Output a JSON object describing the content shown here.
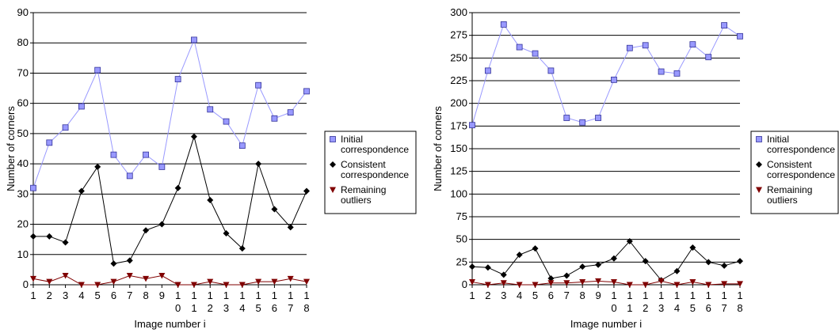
{
  "chart_data": [
    {
      "type": "line",
      "xlabel": "Image number i",
      "ylabel": "Number of corners",
      "x": [
        "1",
        "2",
        "3",
        "4",
        "5",
        "6",
        "7",
        "8",
        "9",
        "10",
        "11",
        "12",
        "13",
        "14",
        "15",
        "16",
        "17",
        "18"
      ],
      "ylim": [
        0,
        90
      ],
      "yticks": [
        0,
        10,
        20,
        30,
        40,
        50,
        60,
        70,
        80,
        90
      ],
      "grid": true,
      "legend_position": "right",
      "series": [
        {
          "name": "Initial correspondence",
          "color": "#9999ff",
          "marker": "square",
          "values": [
            32,
            47,
            52,
            59,
            71,
            43,
            36,
            43,
            39,
            68,
            81,
            58,
            54,
            46,
            66,
            55,
            57,
            64
          ]
        },
        {
          "name": "Consistent correspondence",
          "color": "#000000",
          "marker": "diamond",
          "values": [
            16,
            16,
            14,
            31,
            39,
            7,
            8,
            18,
            20,
            32,
            49,
            28,
            17,
            12,
            40,
            25,
            19,
            31
          ]
        },
        {
          "name": "Remaining outliers",
          "color": "#800000",
          "marker": "triangle-down",
          "values": [
            2,
            1,
            3,
            0,
            0,
            1,
            3,
            2,
            3,
            0,
            0,
            1,
            0,
            0,
            1,
            1,
            2,
            1
          ]
        }
      ]
    },
    {
      "type": "line",
      "xlabel": "Image number i",
      "ylabel": "Number of corners",
      "x": [
        "1",
        "2",
        "3",
        "4",
        "5",
        "6",
        "7",
        "8",
        "9",
        "10",
        "11",
        "12",
        "13",
        "14",
        "15",
        "16",
        "17",
        "18"
      ],
      "ylim": [
        0,
        300
      ],
      "yticks": [
        0,
        25,
        50,
        75,
        100,
        125,
        150,
        175,
        200,
        225,
        250,
        275,
        300
      ],
      "grid": true,
      "legend_position": "right",
      "series": [
        {
          "name": "Initial correspondence",
          "color": "#9999ff",
          "marker": "square",
          "values": [
            176,
            236,
            287,
            262,
            255,
            236,
            184,
            179,
            184,
            226,
            261,
            264,
            235,
            233,
            265,
            251,
            286,
            274
          ]
        },
        {
          "name": "Consistent correspondence",
          "color": "#000000",
          "marker": "diamond",
          "values": [
            20,
            19,
            11,
            33,
            40,
            7,
            10,
            20,
            22,
            29,
            48,
            26,
            5,
            15,
            41,
            25,
            21,
            26
          ]
        },
        {
          "name": "Remaining outliers",
          "color": "#800000",
          "marker": "triangle-down",
          "values": [
            3,
            0,
            2,
            0,
            0,
            2,
            2,
            3,
            4,
            3,
            0,
            0,
            4,
            0,
            3,
            0,
            1,
            1
          ]
        }
      ]
    }
  ]
}
